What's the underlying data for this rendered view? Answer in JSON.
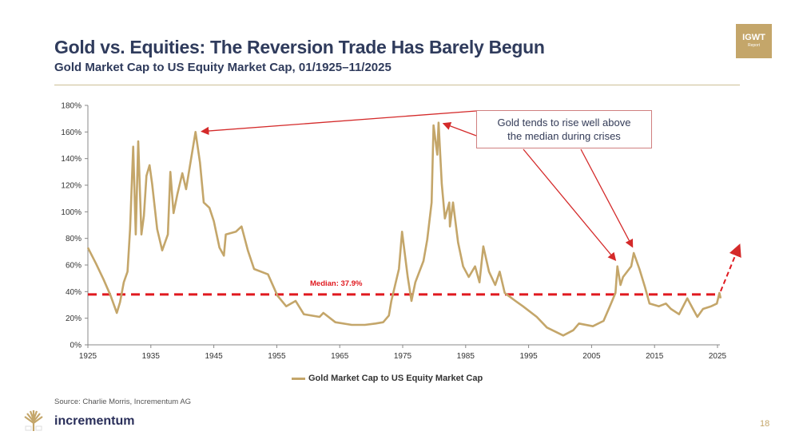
{
  "header": {
    "title": "Gold vs. Equities: The Reversion Trade Has Barely Begun",
    "subtitle": "Gold Market Cap to US Equity Market Cap, 01/1925–11/2025",
    "badge_main": "IGWT",
    "badge_sub": "Report"
  },
  "footer": {
    "source": "Source: Charlie Morris, Incrementum AG",
    "brand": "incrementum",
    "page_number": "18"
  },
  "colors": {
    "gold": "#c4a66a",
    "median": "#e0191f",
    "annotation": "#d42a2a",
    "title": "#2f3b5c"
  },
  "chart_data": {
    "type": "line",
    "title": "",
    "xlabel": "",
    "ylabel": "",
    "xlim": [
      1925,
      2025
    ],
    "ylim": [
      0,
      180
    ],
    "x_ticks": [
      "1925",
      "1935",
      "1945",
      "1955",
      "1965",
      "1975",
      "1985",
      "1995",
      "2005",
      "2015",
      "2025"
    ],
    "y_ticks": [
      "0%",
      "20%",
      "40%",
      "60%",
      "80%",
      "100%",
      "120%",
      "140%",
      "160%",
      "180%"
    ],
    "grid": false,
    "legend": "bottom",
    "series": [
      {
        "name": "Gold Market Cap to US Equity Market Cap",
        "x": [
          1925.0,
          1926.3,
          1927.5,
          1928.6,
          1929.6,
          1930.1,
          1930.7,
          1931.3,
          1931.7,
          1932.2,
          1932.6,
          1933.0,
          1933.5,
          1933.9,
          1934.3,
          1934.8,
          1935.2,
          1936.0,
          1936.8,
          1937.7,
          1938.1,
          1938.6,
          1939.2,
          1940.0,
          1940.6,
          1942.1,
          1942.8,
          1943.4,
          1944.3,
          1945.0,
          1945.9,
          1946.6,
          1946.9,
          1948.5,
          1949.4,
          1950.4,
          1951.4,
          1953.6,
          1955.1,
          1956.5,
          1958.0,
          1959.3,
          1961.8,
          1962.4,
          1964.3,
          1966.9,
          1969.0,
          1970.7,
          1971.9,
          1972.8,
          1973.2,
          1974.4,
          1974.9,
          1975.8,
          1976.4,
          1977.0,
          1978.3,
          1978.9,
          1979.6,
          1979.9,
          1980.5,
          1980.7,
          1981.2,
          1981.7,
          1982.4,
          1982.5,
          1983.0,
          1983.8,
          1984.6,
          1985.5,
          1986.5,
          1987.2,
          1987.8,
          1988.7,
          1989.7,
          1990.4,
          1991.2,
          1992.9,
          1994.1,
          1996.3,
          1997.9,
          2000.5,
          2002.1,
          2003.0,
          2005.2,
          2006.9,
          2007.9,
          2008.8,
          2009.1,
          2009.6,
          2010.0,
          2011.3,
          2011.7,
          2012.6,
          2013.5,
          2014.2,
          2015.7,
          2016.8,
          2017.6,
          2018.9,
          2020.2,
          2021.1,
          2021.8,
          2022.7,
          2024.0,
          2024.9,
          2025.3,
          2025.5
        ],
        "y": [
          73,
          61,
          49,
          37,
          24,
          32,
          47,
          55,
          87,
          149,
          83,
          153,
          83,
          97,
          127,
          135,
          121,
          87,
          71,
          83,
          130,
          99,
          113,
          129,
          117,
          160,
          137,
          107,
          103,
          93,
          73,
          67,
          83,
          85,
          89,
          71,
          57,
          53,
          37,
          29,
          33,
          23,
          21,
          24,
          17,
          15,
          15,
          16,
          17,
          22,
          33,
          57,
          85,
          51,
          33,
          47,
          63,
          79,
          107,
          165,
          143,
          167,
          121,
          95,
          107,
          89,
          107,
          77,
          59,
          51,
          59,
          47,
          74,
          55,
          45,
          55,
          39,
          33,
          29,
          21,
          13,
          7,
          11,
          16,
          14,
          18,
          29,
          39,
          59,
          45,
          51,
          59,
          69,
          57,
          43,
          31,
          29,
          31,
          27,
          23,
          35,
          27,
          21,
          27,
          29,
          31,
          39,
          35
        ]
      }
    ],
    "median": {
      "value": 37.9,
      "label": "Median: 37.9%"
    },
    "annotation": "Gold tends to rise well above the median during crises",
    "annotation_lines": [
      "Gold tends to rise well above",
      "the median during crises"
    ],
    "annotation_targets": [
      [
        1942.3,
        161
      ],
      [
        1980.7,
        167
      ],
      [
        2008.8,
        60
      ],
      [
        2011.5,
        70
      ]
    ]
  }
}
